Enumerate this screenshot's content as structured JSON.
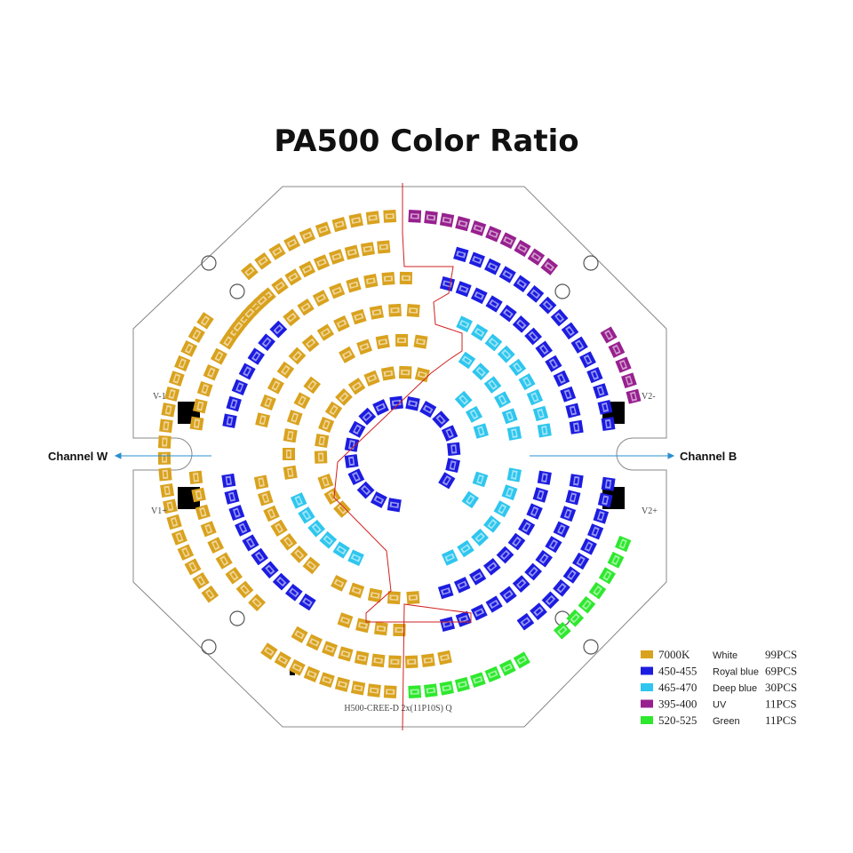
{
  "header": {
    "title": "PA500 Color Ratio"
  },
  "channels": [
    {
      "label": "Channel W"
    },
    {
      "label": "Channel B"
    }
  ],
  "terminals": [
    "V-1",
    "V1+",
    "V2-",
    "V2+"
  ],
  "board_label": "H500-CREE-D 2x(11P10S) Q",
  "legend": [
    {
      "code": "7000K",
      "name": "White",
      "count": "99PCS"
    },
    {
      "code": "450-455",
      "name": "Royal blue",
      "count": "69PCS"
    },
    {
      "code": "465-470",
      "name": "Deep blue",
      "count": "30PCS"
    },
    {
      "code": "395-400",
      "name": "UV",
      "count": "11PCS"
    },
    {
      "code": "520-525",
      "name": "Green",
      "count": "11PCS"
    }
  ]
}
